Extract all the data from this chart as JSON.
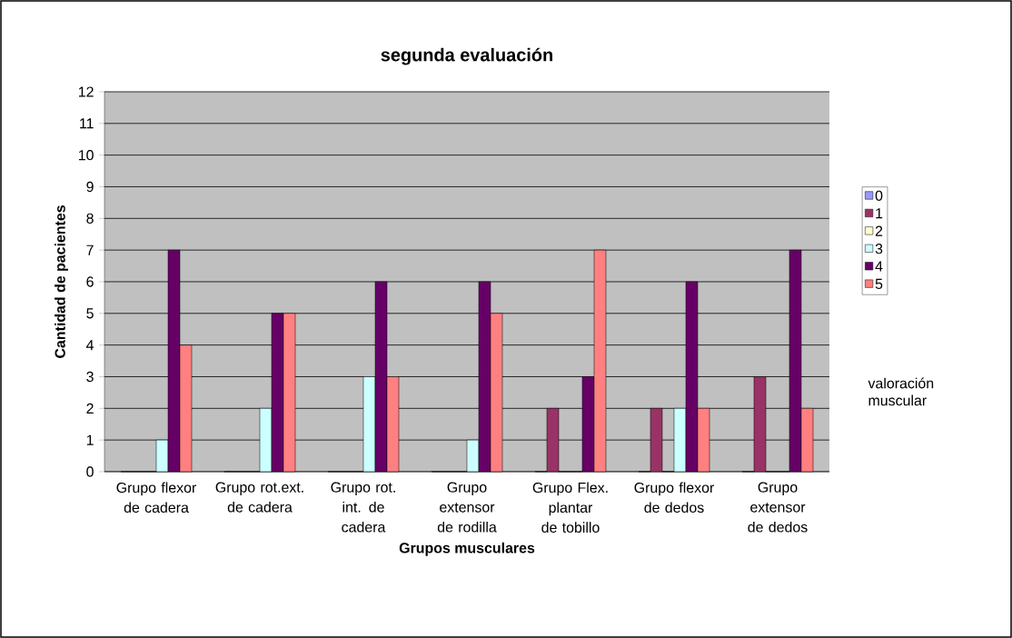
{
  "chart_data": {
    "type": "bar",
    "title": "segunda evaluación",
    "xlabel": "Grupos musculares",
    "ylabel": "Cantidad de pacientes",
    "legend_title": "valoración muscular",
    "categories": [
      "Grupo flexor de cadera",
      "Grupo rot.ext. de cadera",
      "Grupo rot. int. de cadera",
      "Grupo extensor de rodilla",
      "Grupo Flex. plantar de tobillo",
      "Grupo flexor de dedos",
      "Grupo extensor de dedos"
    ],
    "series": [
      {
        "name": "0",
        "color": "#9999ff",
        "values": [
          0,
          0,
          0,
          0,
          0,
          0,
          0
        ]
      },
      {
        "name": "1",
        "color": "#993366",
        "values": [
          0,
          0,
          0,
          0,
          2,
          2,
          3
        ]
      },
      {
        "name": "2",
        "color": "#ffffcc",
        "values": [
          0,
          0,
          0,
          0,
          0,
          0,
          0
        ]
      },
      {
        "name": "3",
        "color": "#ccffff",
        "values": [
          1,
          2,
          3,
          1,
          0,
          2,
          0
        ]
      },
      {
        "name": "4",
        "color": "#660066",
        "values": [
          7,
          5,
          6,
          6,
          3,
          6,
          7
        ]
      },
      {
        "name": "5",
        "color": "#ff8080",
        "values": [
          4,
          5,
          3,
          5,
          7,
          2,
          2
        ]
      }
    ],
    "ylim": [
      0,
      12
    ],
    "yticks": [
      0,
      1,
      2,
      3,
      4,
      5,
      6,
      7,
      8,
      9,
      10,
      11,
      12
    ],
    "grid": "y",
    "legend": "right"
  }
}
